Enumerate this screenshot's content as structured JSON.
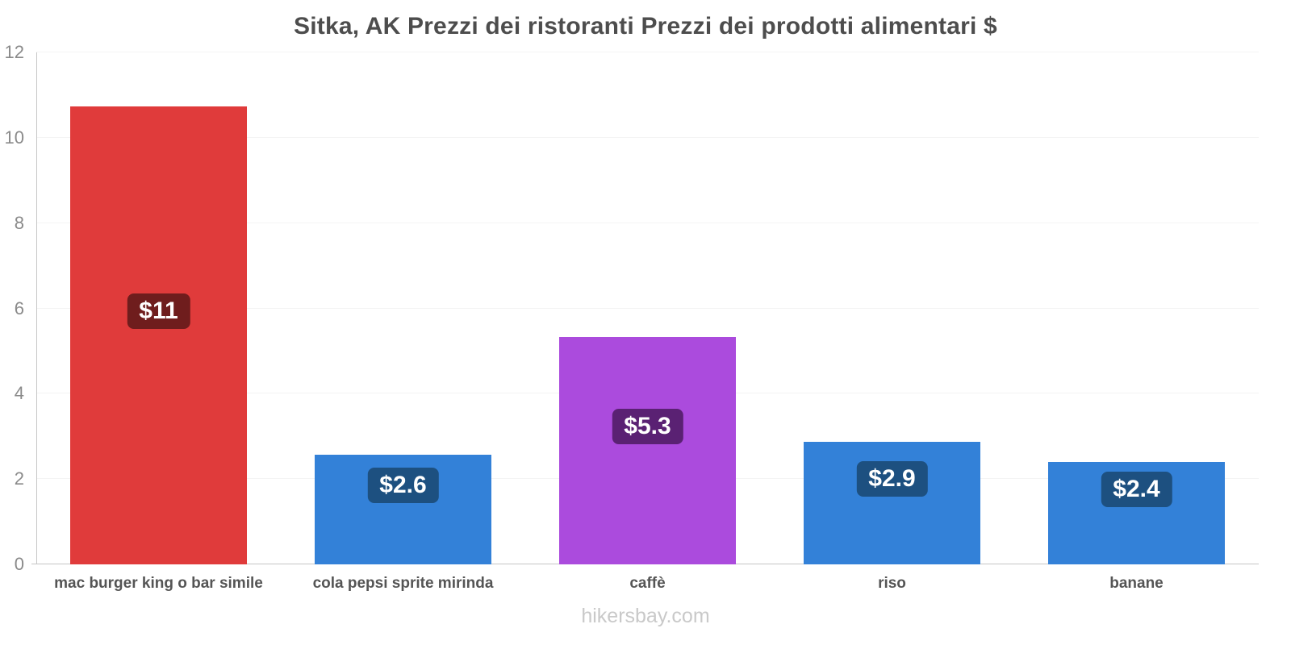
{
  "title": "Sitka, AK Prezzi dei ristoranti Prezzi dei prodotti alimentari $",
  "footer": "hikersbay.com",
  "chart_data": {
    "type": "bar",
    "title": "Sitka, AK Prezzi dei ristoranti Prezzi dei prodotti alimentari $",
    "categories": [
      "mac burger king o bar simile",
      "cola pepsi sprite mirinda",
      "caffè",
      "riso",
      "banane"
    ],
    "values": [
      10.74,
      2.57,
      5.33,
      2.87,
      2.4
    ],
    "data_labels": [
      "$11",
      "$2.6",
      "$5.3",
      "$2.9",
      "$2.4"
    ],
    "bar_colors": [
      "#e03b3b",
      "#3381d8",
      "#ab4bdd",
      "#3381d8",
      "#3381d8"
    ],
    "label_box_colors": [
      "#6f1d1d",
      "#1d5080",
      "#5a2173",
      "#1d5080",
      "#1d5080"
    ],
    "xlabel": "",
    "ylabel": "",
    "ylim": [
      0,
      12
    ],
    "yticks": [
      0,
      2,
      4,
      6,
      8,
      10,
      12
    ],
    "grid": true,
    "legend": false,
    "currency": "$"
  }
}
